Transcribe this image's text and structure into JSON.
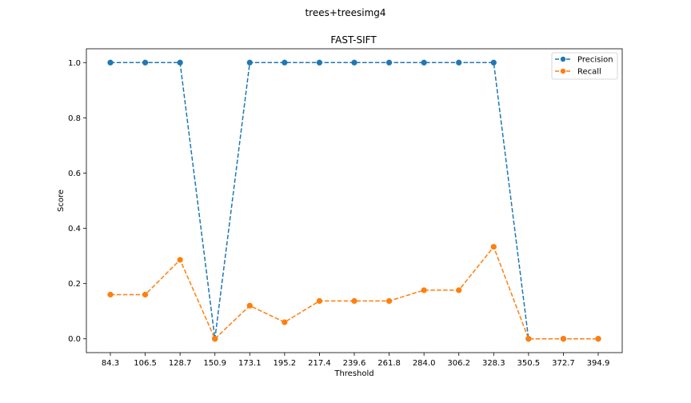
{
  "chart_data": {
    "type": "line",
    "suptitle": "trees+treesimg4",
    "title": "FAST-SIFT",
    "xlabel": "Threshold",
    "ylabel": "Score",
    "categories": [
      "84.3",
      "106.5",
      "128.7",
      "150.9",
      "173.1",
      "195.2",
      "217.4",
      "239.6",
      "261.8",
      "284.0",
      "306.2",
      "328.3",
      "350.5",
      "372.7",
      "394.9"
    ],
    "ylim": [
      -0.05,
      1.05
    ],
    "yticks": [
      "0.0",
      "0.2",
      "0.4",
      "0.6",
      "0.8",
      "1.0"
    ],
    "ytick_values": [
      0.0,
      0.2,
      0.4,
      0.6,
      0.8,
      1.0
    ],
    "grid": false,
    "legend_position": "top-right",
    "series": [
      {
        "name": "Precision",
        "color": "#1f77b4",
        "values": [
          1.0,
          1.0,
          1.0,
          0.0,
          1.0,
          1.0,
          1.0,
          1.0,
          1.0,
          1.0,
          1.0,
          1.0,
          0.0,
          0.0,
          0.0
        ]
      },
      {
        "name": "Recall",
        "color": "#ff7f0e",
        "values": [
          0.16,
          0.16,
          0.286,
          0.0,
          0.12,
          0.06,
          0.137,
          0.137,
          0.137,
          0.176,
          0.176,
          0.333,
          0.0,
          0.0,
          0.0
        ]
      }
    ]
  }
}
